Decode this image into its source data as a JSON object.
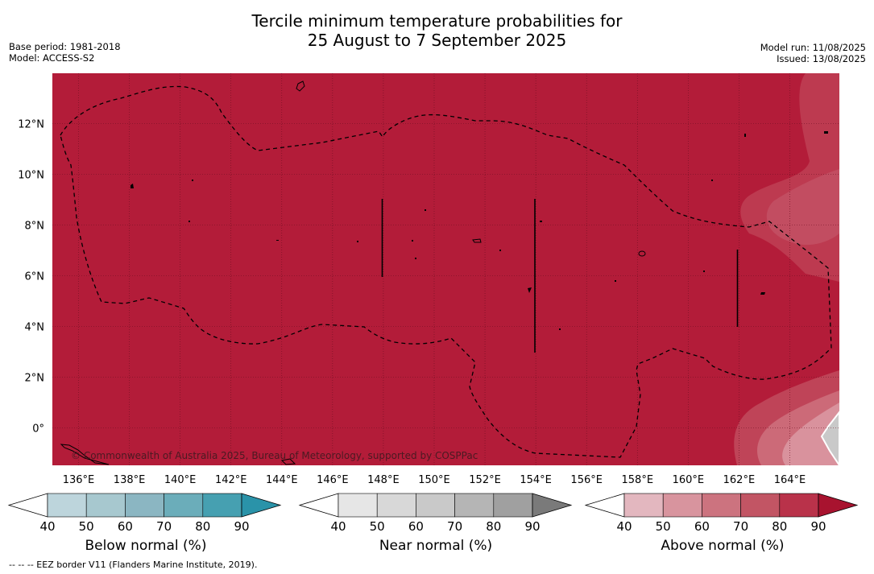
{
  "title": {
    "line1": "Tercile minimum temperature probabilities for",
    "line2": "25 August to 7 September 2025"
  },
  "meta_left": {
    "base_period": "Base period: 1981-2018",
    "model": "Model: ACCESS-S2"
  },
  "meta_right": {
    "model_run": "Model run: 11/08/2025",
    "issued": "Issued: 13/08/2025"
  },
  "map": {
    "lon_ticks": [
      "136°E",
      "138°E",
      "140°E",
      "142°E",
      "144°E",
      "146°E",
      "148°E",
      "150°E",
      "152°E",
      "154°E",
      "156°E",
      "158°E",
      "160°E",
      "162°E",
      "164°E"
    ],
    "lat_ticks": [
      "12°N",
      "10°N",
      "8°N",
      "6°N",
      "4°N",
      "2°N",
      "0°"
    ],
    "copyright": "© Commonwealth of Australia 2025, Bureau of Meteorology, supported by COSPPac",
    "base_color": "#b31c39"
  },
  "colorbars": [
    {
      "label": "Below normal (%)",
      "ticks": [
        "40",
        "50",
        "60",
        "70",
        "80",
        "90"
      ],
      "colors": [
        "#ffffff",
        "#bdd5dc",
        "#a7c8cf",
        "#8bb6c2",
        "#6badba",
        "#46a0b1",
        "#2a93a9"
      ]
    },
    {
      "label": "Near normal (%)",
      "ticks": [
        "40",
        "50",
        "60",
        "70",
        "80",
        "90"
      ],
      "colors": [
        "#ffffff",
        "#e6e6e6",
        "#d8d8d8",
        "#c9c9c9",
        "#b5b5b5",
        "#a0a0a0",
        "#7a7a7a"
      ]
    },
    {
      "label": "Above normal (%)",
      "ticks": [
        "40",
        "50",
        "60",
        "70",
        "80",
        "90"
      ],
      "colors": [
        "#ffffff",
        "#e3b7bf",
        "#d8949e",
        "#cc737f",
        "#c25564",
        "#b9324a",
        "#a8132f"
      ]
    }
  ],
  "footnote": "--  --  -- EEZ border V11 (Flanders Marine Institute, 2019)."
}
